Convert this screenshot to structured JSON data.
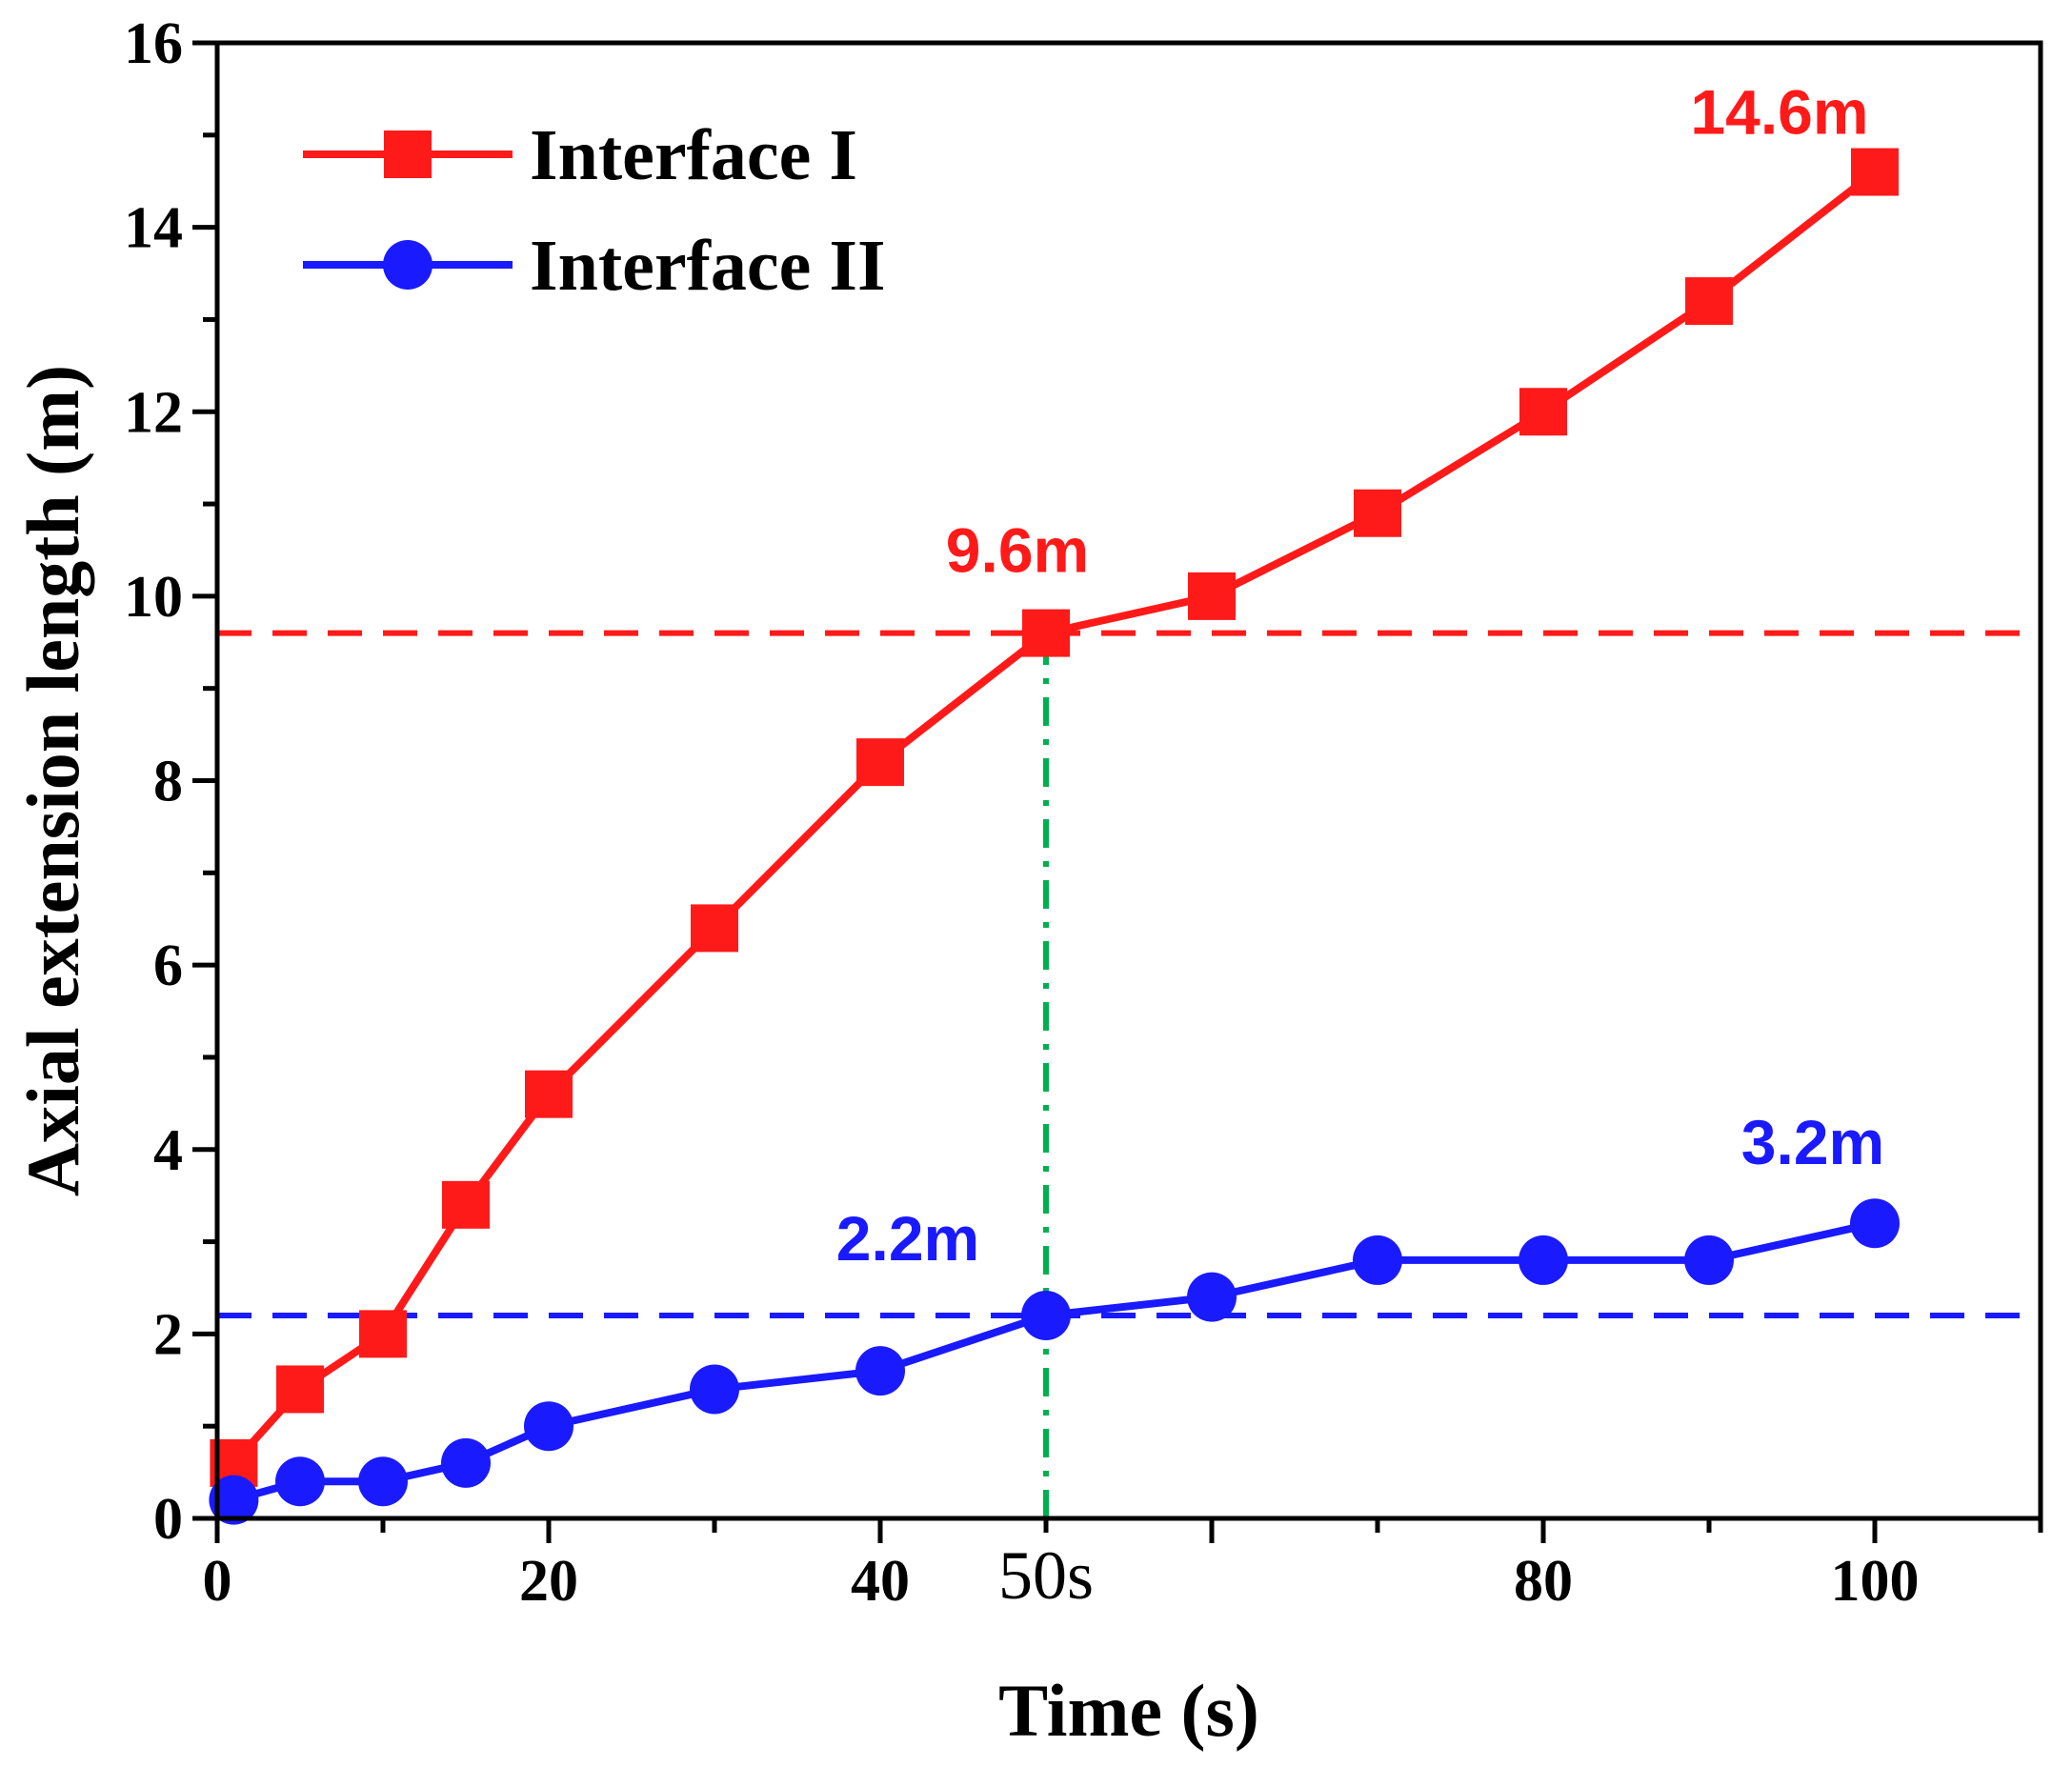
{
  "chart_data": {
    "type": "line",
    "title": "",
    "xlabel": "Time (s)",
    "ylabel": "Axial extension length (m)",
    "xlim": [
      0,
      110
    ],
    "ylim": [
      0,
      16
    ],
    "xticks": [
      0,
      20,
      40,
      60,
      80,
      100
    ],
    "xtick_labels": [
      "0",
      "20",
      "40",
      "",
      "80",
      "100"
    ],
    "yticks": [
      0,
      2,
      4,
      6,
      8,
      10,
      12,
      14,
      16
    ],
    "ytick_labels": [
      "0",
      "2",
      "4",
      "6",
      "8",
      "10",
      "12",
      "14",
      "16"
    ],
    "legend_position": "top-left",
    "series": [
      {
        "name": "Interface I",
        "color": "#ff1a1a",
        "marker": "square",
        "x": [
          1,
          5,
          10,
          15,
          20,
          30,
          40,
          50,
          60,
          70,
          80,
          90,
          100
        ],
        "y": [
          0.6,
          1.4,
          2.0,
          3.4,
          4.6,
          6.4,
          8.2,
          9.6,
          10.0,
          10.9,
          12.0,
          13.2,
          14.6
        ]
      },
      {
        "name": "Interface II",
        "color": "#1a1aff",
        "marker": "circle",
        "x": [
          1,
          5,
          10,
          15,
          20,
          30,
          40,
          50,
          60,
          70,
          80,
          90,
          100
        ],
        "y": [
          0.2,
          0.4,
          0.4,
          0.6,
          1.0,
          1.4,
          1.6,
          2.2,
          2.4,
          2.8,
          2.8,
          2.8,
          3.2
        ]
      }
    ],
    "reference_lines": [
      {
        "orientation": "horizontal",
        "value": 9.6,
        "color": "#ff1a1a",
        "style": "dashed"
      },
      {
        "orientation": "horizontal",
        "value": 2.2,
        "color": "#1a1aff",
        "style": "dashed"
      },
      {
        "orientation": "vertical",
        "value": 50,
        "color": "#00b050",
        "style": "dash-dot"
      }
    ],
    "annotations": [
      {
        "text": "14.6m",
        "x": 100,
        "y": 14.6,
        "color": "#ff1a1a"
      },
      {
        "text": "9.6m",
        "x": 50,
        "y": 9.6,
        "color": "#ff1a1a"
      },
      {
        "text": "3.2m",
        "x": 100,
        "y": 3.2,
        "color": "#1a1aff"
      },
      {
        "text": "2.2m",
        "x": 50,
        "y": 2.2,
        "color": "#1a1aff"
      }
    ],
    "time_marker_label": "50s"
  }
}
